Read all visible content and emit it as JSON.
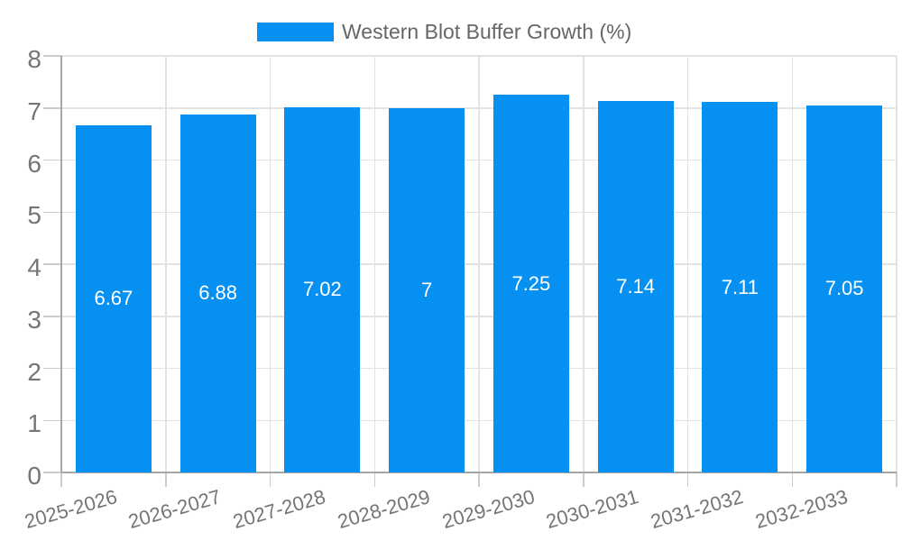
{
  "legend": {
    "label": "Western Blot Buffer Growth (%)"
  },
  "colors": {
    "bar": "#0690f2",
    "grid": "#e2e2e2",
    "axis": "#a6a6a6",
    "tick": "#cccccc",
    "tick_text": "#757575",
    "legend_text": "#666666",
    "value_text": "#ffffff",
    "background": "#ffffff"
  },
  "chart_data": {
    "type": "bar",
    "title": "Western Blot Buffer Growth (%)",
    "categories": [
      "2025-2026",
      "2026-2027",
      "2027-2028",
      "2028-2029",
      "2029-2030",
      "2030-2031",
      "2031-2032",
      "2032-2033"
    ],
    "values": [
      6.67,
      6.88,
      7.02,
      7,
      7.25,
      7.14,
      7.11,
      7.05
    ],
    "value_labels": [
      "6.67",
      "6.88",
      "7.02",
      "7",
      "7.25",
      "7.14",
      "7.11",
      "7.05"
    ],
    "xlabel": "",
    "ylabel": "",
    "ylim": [
      0,
      8
    ],
    "yticks": [
      0,
      1,
      2,
      3,
      4,
      5,
      6,
      7,
      8
    ],
    "grid": true,
    "legend_position": "top-center",
    "bar_label_position": "inside-center"
  }
}
